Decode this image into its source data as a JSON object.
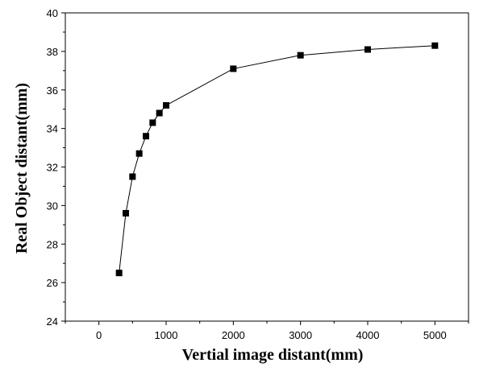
{
  "chart_data": {
    "type": "line",
    "title": "",
    "xlabel": "Vertial image distant(mm)",
    "ylabel": "Real Object distant(mm)",
    "xlim": [
      -500,
      5500
    ],
    "ylim": [
      24,
      40
    ],
    "xticks": [
      0,
      1000,
      2000,
      3000,
      4000,
      5000
    ],
    "yticks": [
      24,
      26,
      28,
      30,
      32,
      34,
      36,
      38,
      40
    ],
    "grid": false,
    "legend": "none",
    "series": [
      {
        "marker": "square",
        "color": "#000000",
        "x": [
          300,
          400,
          500,
          600,
          700,
          800,
          900,
          1000,
          2000,
          3000,
          4000,
          5000
        ],
        "y": [
          26.5,
          29.6,
          31.5,
          32.7,
          33.6,
          34.3,
          34.8,
          35.2,
          37.1,
          37.8,
          38.1,
          38.3
        ]
      }
    ]
  }
}
